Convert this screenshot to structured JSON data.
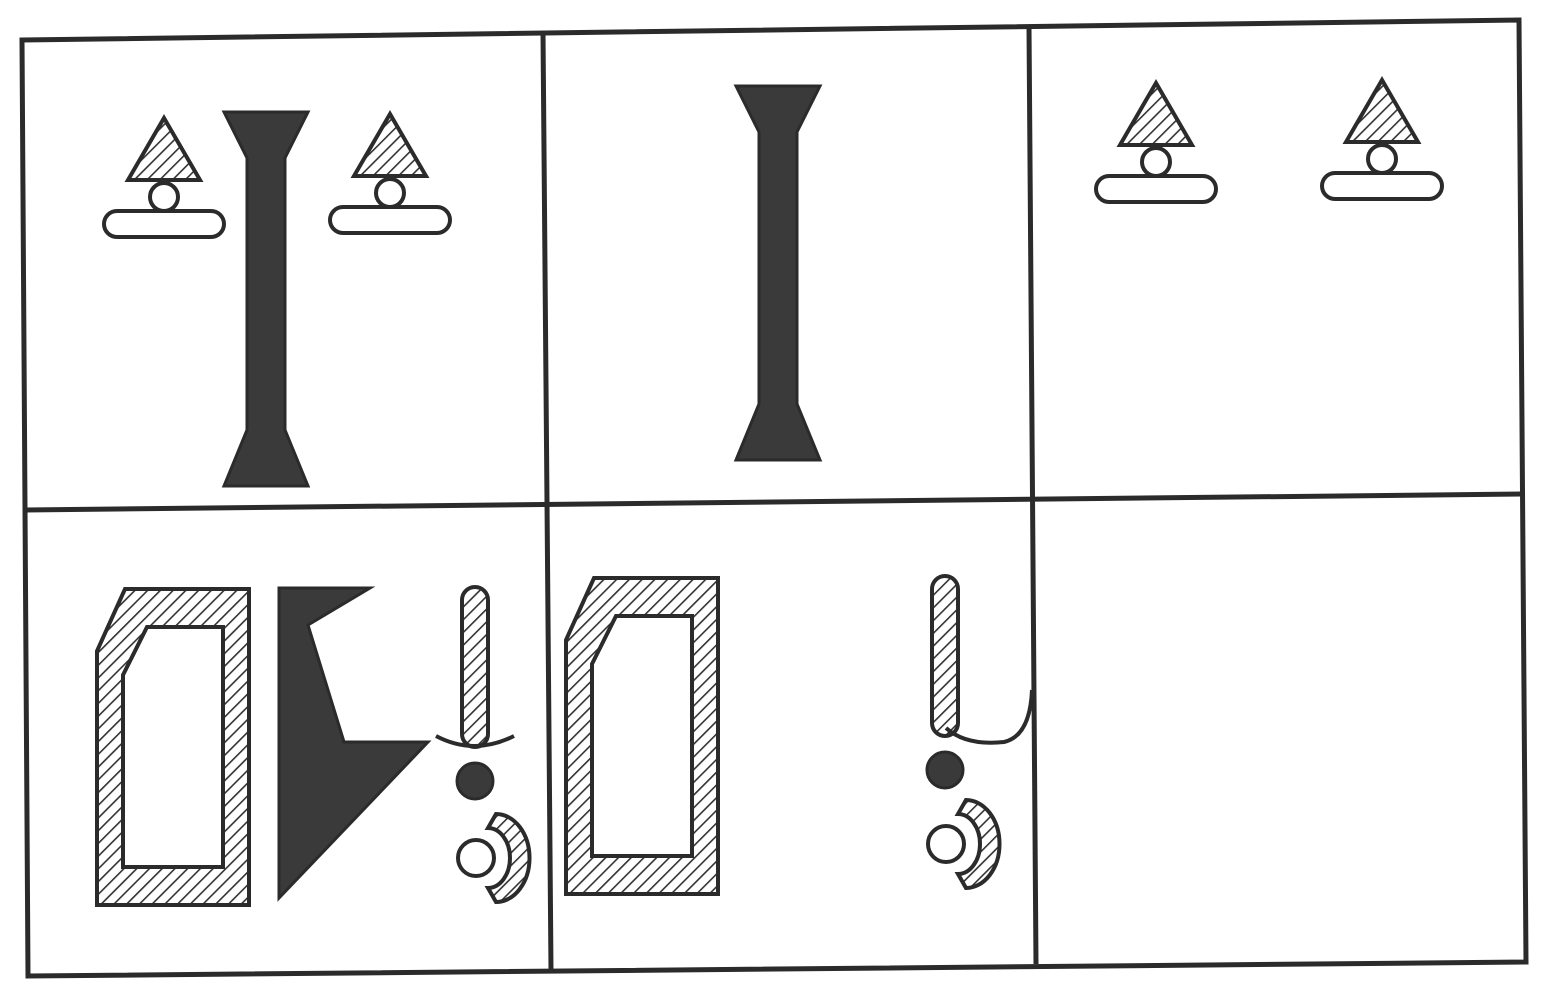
{
  "puzzle": {
    "grid": {
      "rows": 2,
      "columns": 3,
      "cells": [
        {
          "row": 1,
          "column": 1,
          "contents": [
            "lamp-figure",
            "solid-column",
            "lamp-figure"
          ]
        },
        {
          "row": 1,
          "column": 2,
          "contents": [
            "solid-column"
          ]
        },
        {
          "row": 1,
          "column": 3,
          "contents": [
            "lamp-figure",
            "lamp-figure"
          ]
        },
        {
          "row": 2,
          "column": 1,
          "contents": [
            "hatched-frame",
            "solid-wedge",
            "bar-with-dot-and-crescent"
          ]
        },
        {
          "row": 2,
          "column": 2,
          "contents": [
            "hatched-frame",
            "bar-with-hook-dot-and-crescent"
          ]
        },
        {
          "row": 2,
          "column": 3,
          "contents": [],
          "state": "empty"
        }
      ]
    },
    "colors": {
      "ink": "#2b2b2b",
      "solid_fill": "#3a3a3a",
      "hatch": "#333333",
      "paper": "#ffffff"
    }
  }
}
